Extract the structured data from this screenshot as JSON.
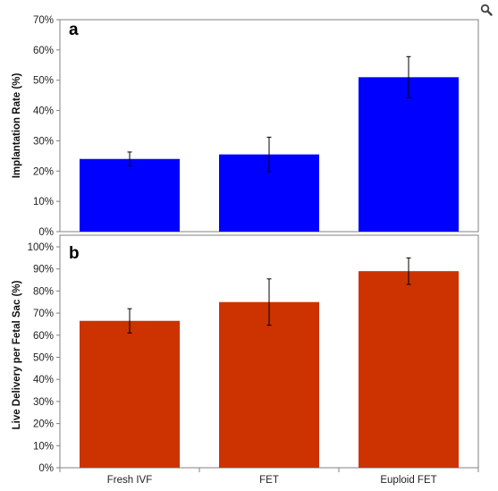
{
  "figure": {
    "zoom_icon": "magnifier-icon"
  },
  "chart_data": [
    {
      "type": "bar",
      "panel_label": "a",
      "categories": [
        "Fresh IVF",
        "FET",
        "Euploid FET"
      ],
      "values": [
        24,
        25.5,
        51
      ],
      "error": [
        2.3,
        5.7,
        6.8
      ],
      "ylabel": "Implantation Rate (%)",
      "ylim": [
        0,
        70
      ],
      "yticks": [
        "0%",
        "10%",
        "20%",
        "30%",
        "40%",
        "50%",
        "60%",
        "70%"
      ],
      "bar_color": "#0000ff",
      "grid": false
    },
    {
      "type": "bar",
      "panel_label": "b",
      "categories": [
        "Fresh IVF",
        "FET",
        "Euploid FET"
      ],
      "values": [
        66.5,
        75,
        89
      ],
      "error": [
        5.5,
        10.5,
        6
      ],
      "ylabel": "Live Delivery per Fetal Sac (%)",
      "ylim": [
        0,
        100
      ],
      "yticks": [
        "0%",
        "10%",
        "20%",
        "30%",
        "40%",
        "50%",
        "60%",
        "70%",
        "80%",
        "90%",
        "100%"
      ],
      "bar_color": "#cc3300",
      "grid": false
    }
  ]
}
